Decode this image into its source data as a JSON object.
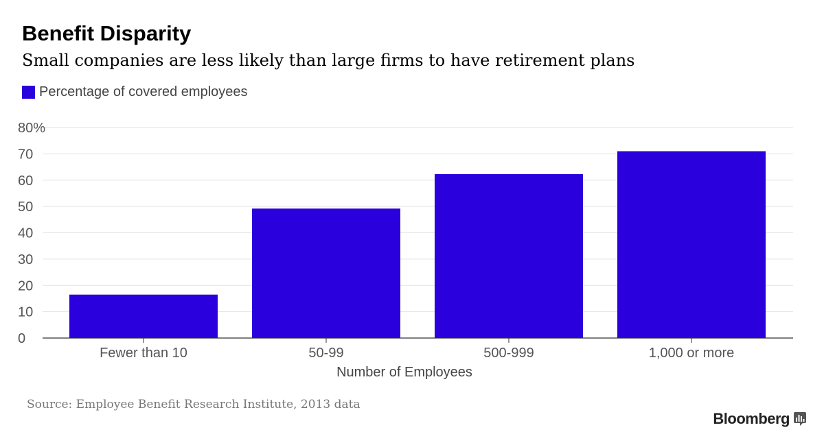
{
  "header": {
    "title": "Benefit Disparity",
    "subtitle": "Small companies are less likely than large firms to have retirement plans"
  },
  "legend": {
    "label": "Percentage of covered employees",
    "color": "#2a00dc"
  },
  "chart_data": {
    "type": "bar",
    "title": "Benefit Disparity",
    "subtitle": "Small companies are less likely than large firms to have retirement plans",
    "categories": [
      "Fewer than 10",
      "50-99",
      "500-999",
      "1,000 or more"
    ],
    "series": [
      {
        "name": "Percentage of covered employees",
        "values": [
          16.5,
          49.2,
          62.3,
          71.0
        ],
        "color": "#2a00dc"
      }
    ],
    "xlabel": "Number of Employees",
    "ylabel": "",
    "ylim": [
      0,
      80
    ],
    "yticks": [
      0,
      10,
      20,
      30,
      40,
      50,
      60,
      70,
      80
    ],
    "ytick_labels": [
      "0",
      "10",
      "20",
      "30",
      "40",
      "50",
      "60",
      "70",
      "80%"
    ],
    "grid": true,
    "legend_position": "top-left"
  },
  "footer": {
    "source": "Source: Employee Benefit Research Institute, 2013 data",
    "brand": "Bloomberg",
    "brand_icon": "bloomberg-chart-icon"
  },
  "colors": {
    "bar": "#2a00dc",
    "grid": "#e3e3e3",
    "axis": "#333333",
    "tick_text": "#555555"
  }
}
